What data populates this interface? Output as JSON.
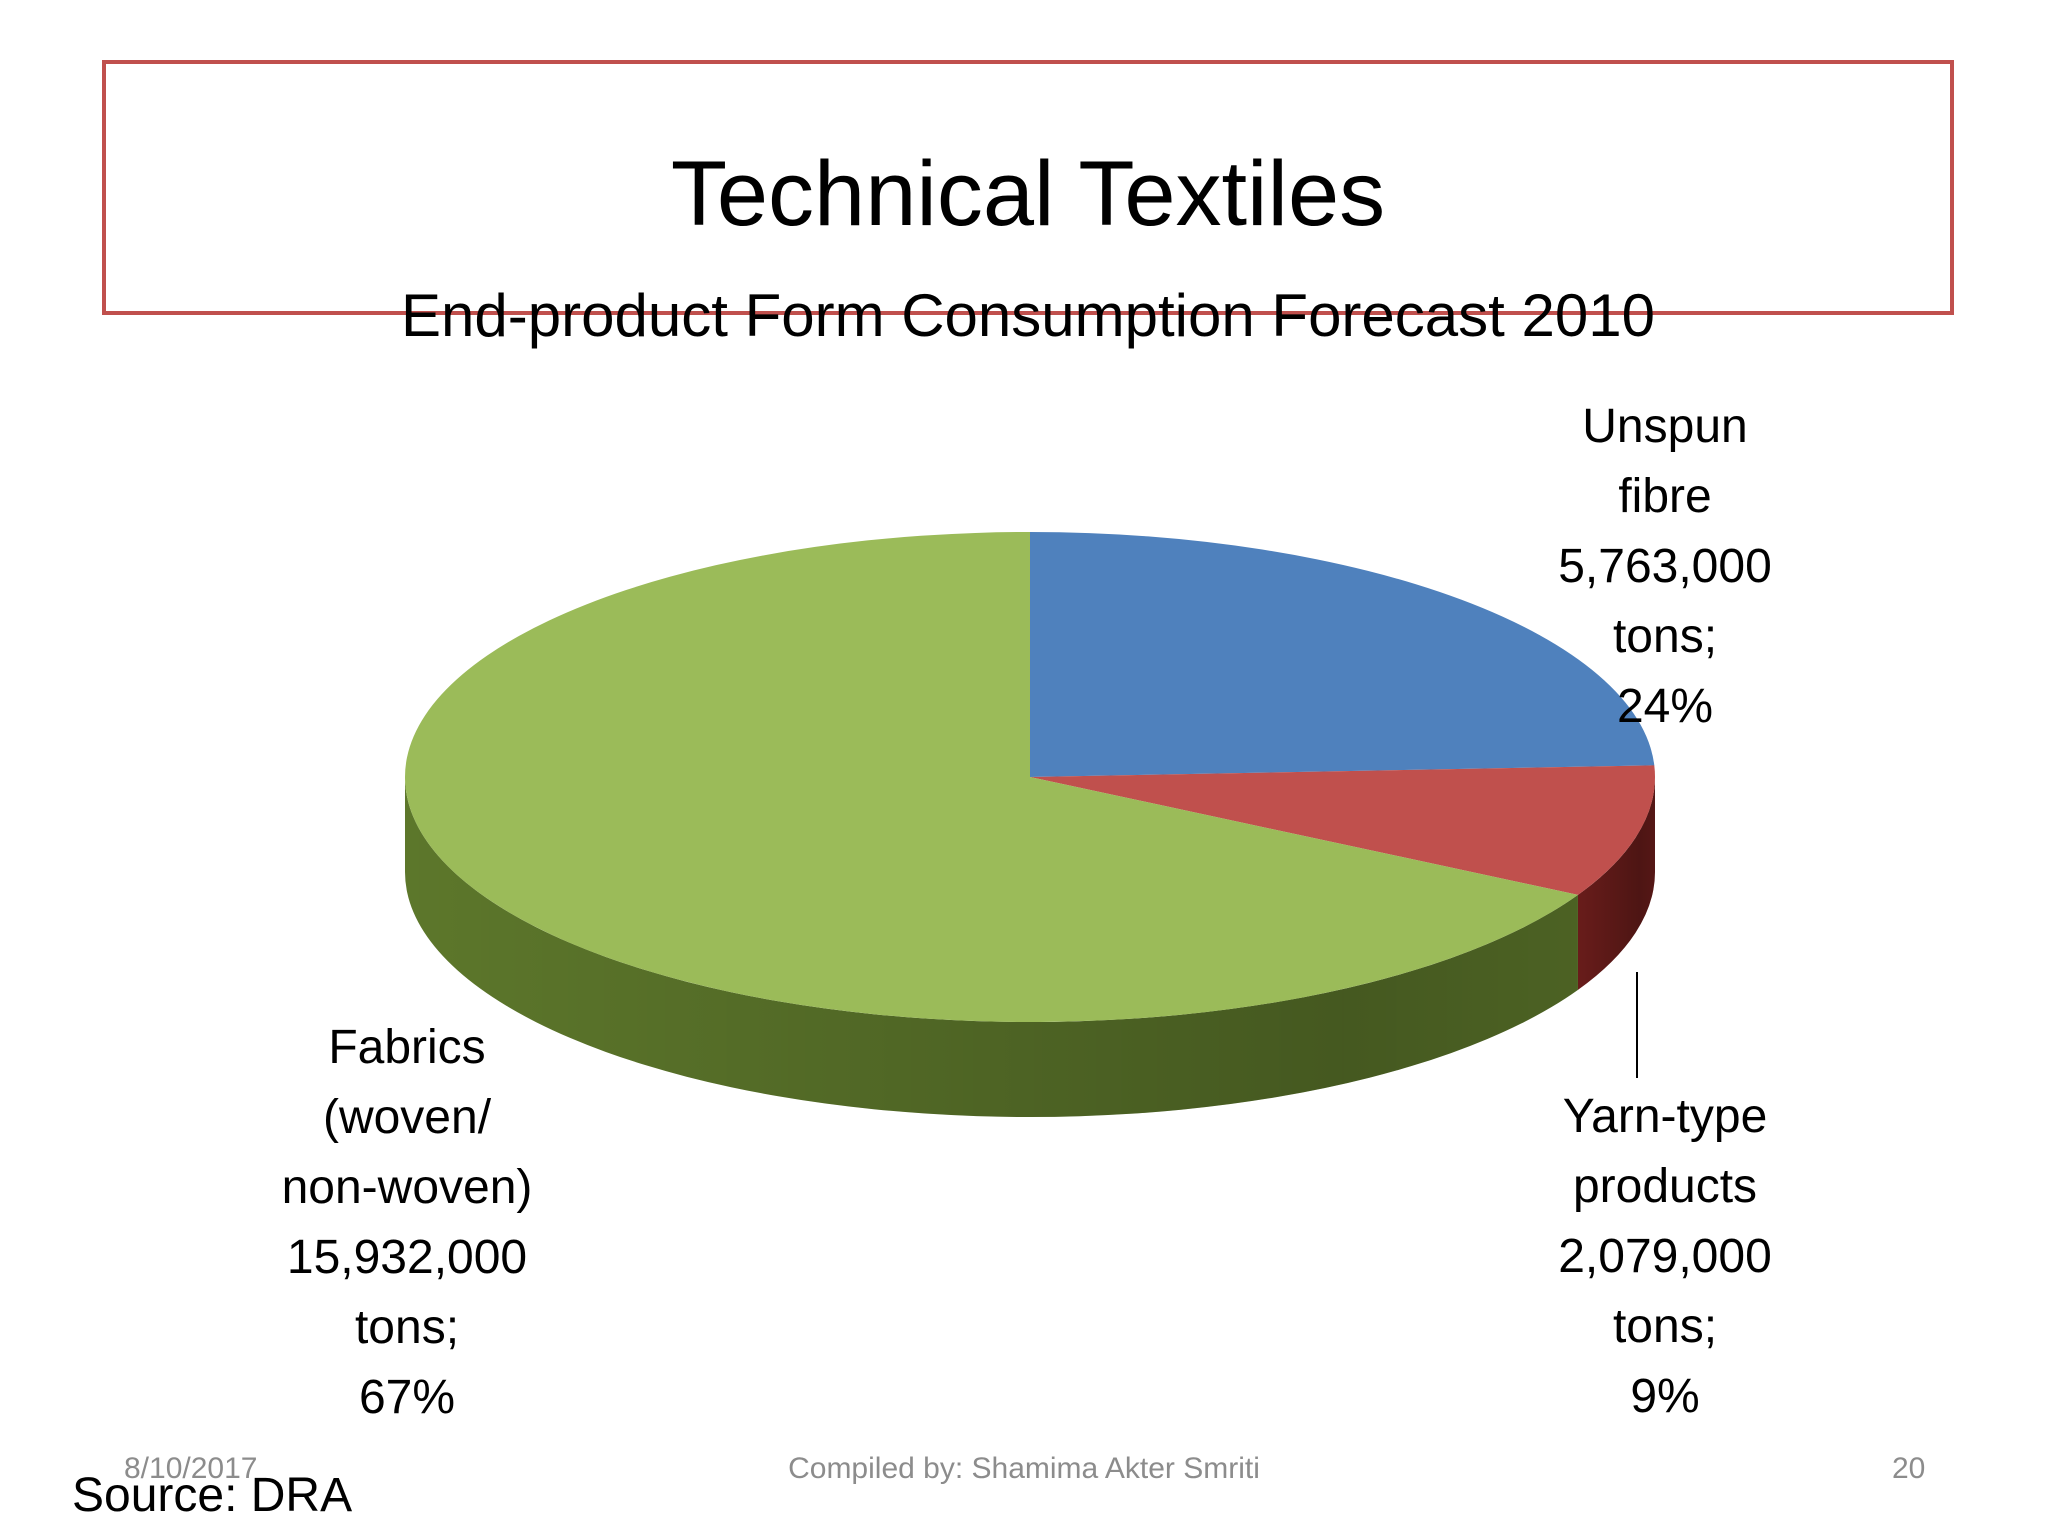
{
  "slide": {
    "title": "Technical Textiles",
    "subtitle": "End-product Form Consumption Forecast 2010",
    "footer_date": "8/10/2017",
    "footer_center": "Compiled by: Shamima Akter Smriti",
    "page_number": "20",
    "source": "Source: DRA"
  },
  "chart_data": {
    "type": "pie",
    "title": "Technical Textiles",
    "subtitle": "End-product Form Consumption Forecast 2010",
    "style": "3d",
    "slices": [
      {
        "name": "Unspun fibre",
        "value": 5763000,
        "percent": 24,
        "color": "#4f81bd",
        "side_color": "#2c4d75",
        "label_lines": [
          "Unspun",
          "fibre",
          "5,763,000",
          "tons;",
          "24%"
        ]
      },
      {
        "name": "Yarn-type products",
        "value": 2079000,
        "percent": 9,
        "color": "#c0504d",
        "side_color": "#6b1d1b",
        "label_lines": [
          "Yarn-type",
          "products",
          "2,079,000",
          "tons;",
          "9%"
        ]
      },
      {
        "name": "Fabrics (woven/ non-woven)",
        "value": 15932000,
        "percent": 67,
        "color": "#9bbb59",
        "side_color": "#5f7a2c",
        "label_lines": [
          "Fabrics",
          "(woven/",
          "non-woven)",
          "15,932,000",
          "tons;",
          "67%"
        ]
      }
    ]
  }
}
